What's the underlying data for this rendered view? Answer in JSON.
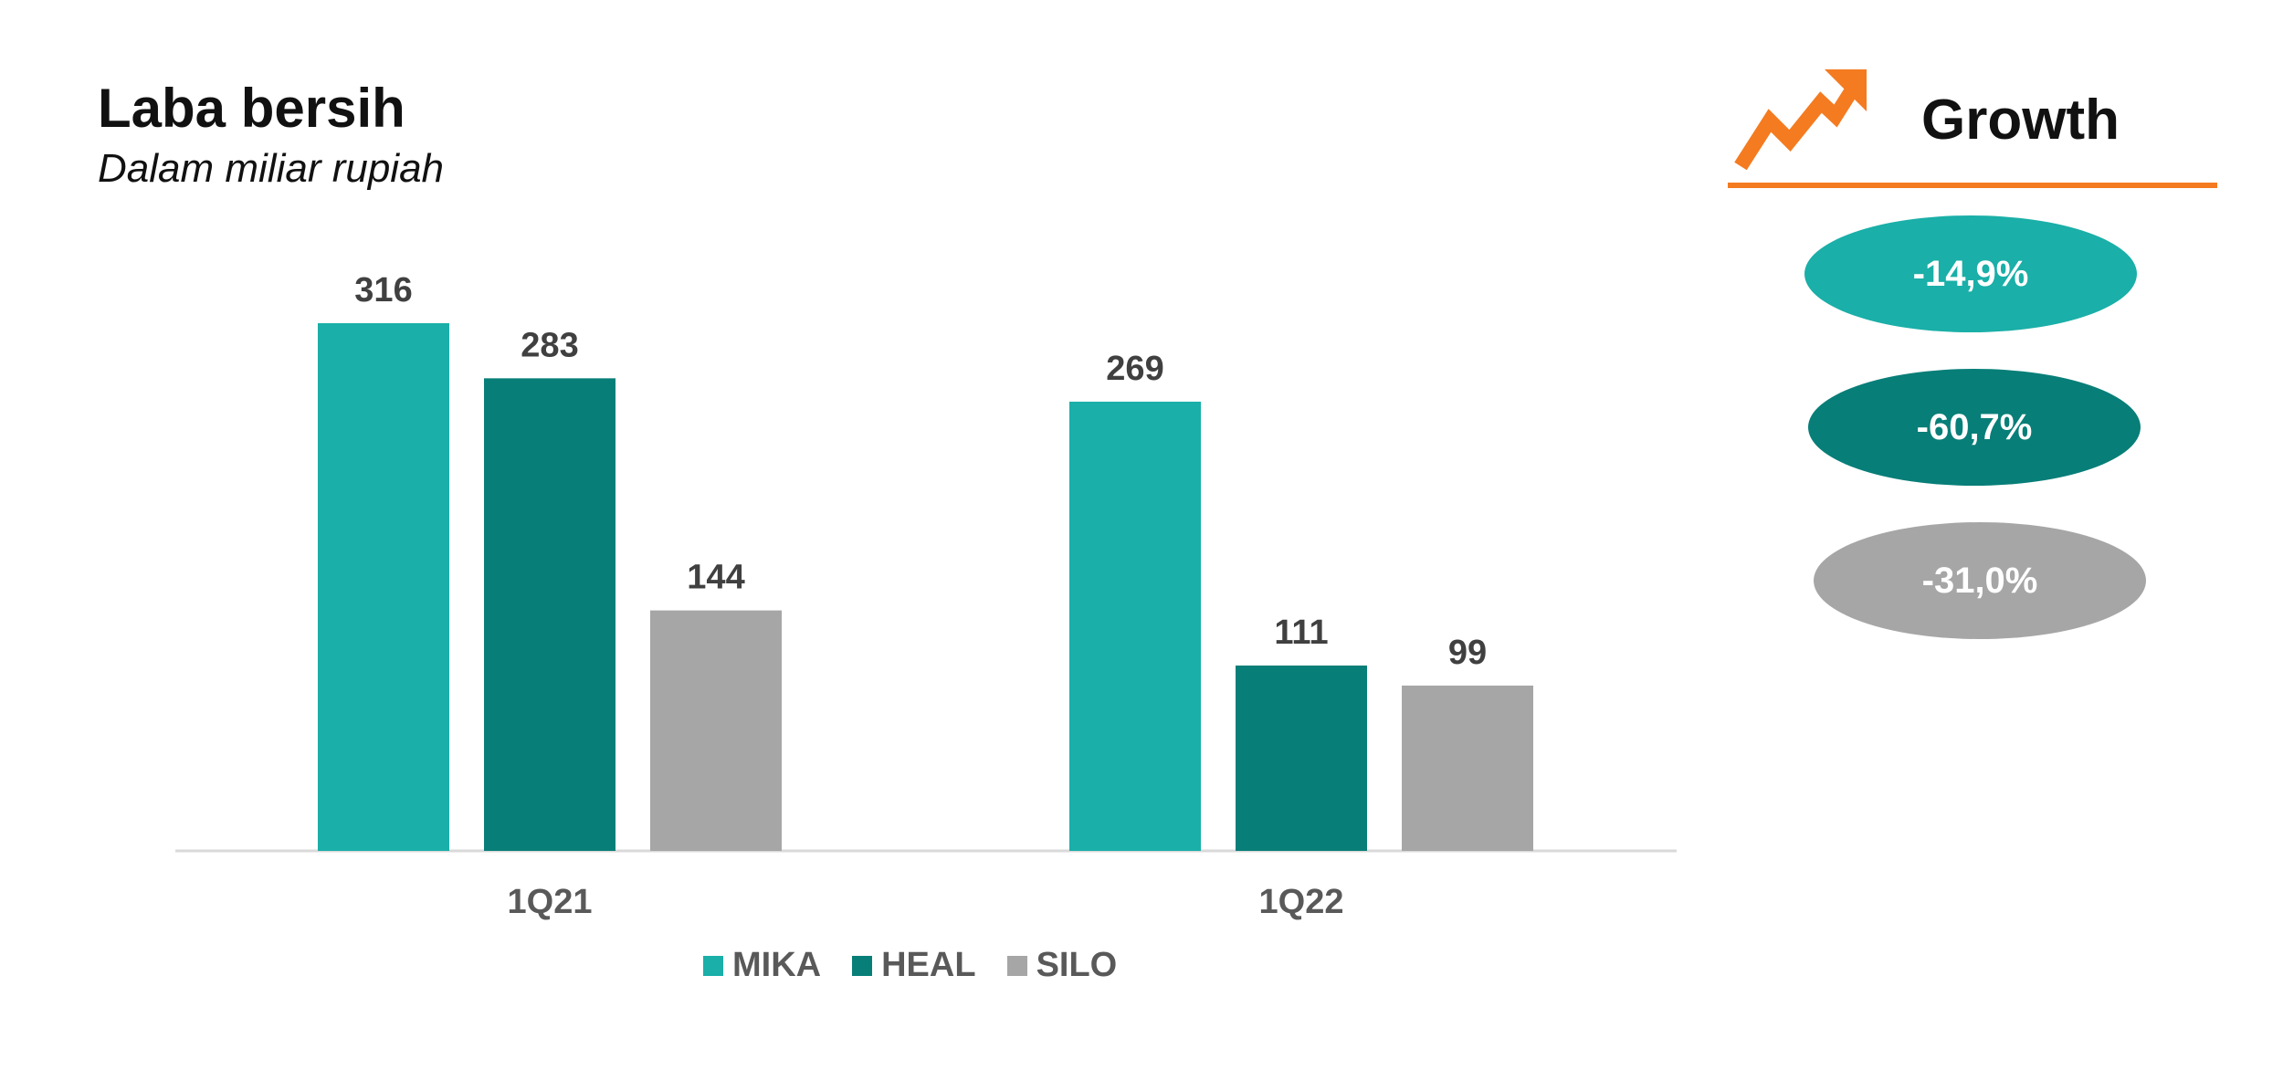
{
  "header": {
    "title": "Laba bersih",
    "subtitle": "Dalam miliar rupiah"
  },
  "growth": {
    "title": "Growth",
    "icon": "trend-up-arrow-icon",
    "accent_color": "#F47B20",
    "items": [
      {
        "label": "-14,9%",
        "color": "#1AAFA8"
      },
      {
        "label": "-60,7%",
        "color": "#087E78"
      },
      {
        "label": "-31,0%",
        "color": "#A6A6A6"
      }
    ]
  },
  "chart_data": {
    "type": "bar",
    "title": "Laba bersih",
    "subtitle": "Dalam miliar rupiah",
    "categories": [
      "1Q21",
      "1Q22"
    ],
    "series": [
      {
        "name": "MIKA",
        "values": [
          316,
          269
        ],
        "color": "#1AAFA8"
      },
      {
        "name": "HEAL",
        "values": [
          283,
          111
        ],
        "color": "#087E78"
      },
      {
        "name": "SILO",
        "values": [
          144,
          99
        ],
        "color": "#A6A6A6"
      }
    ],
    "data_labels": true,
    "grid": false,
    "legend_position": "bottom"
  }
}
